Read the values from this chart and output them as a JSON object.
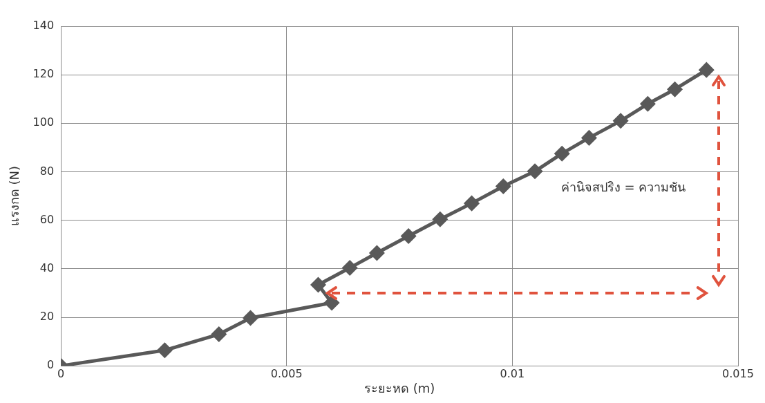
{
  "chart_data": {
    "type": "line",
    "xlabel": "ระยะหด (m)",
    "ylabel": "แรงกด (N)",
    "x": [
      0,
      0.0023,
      0.0035,
      0.0042,
      0.006,
      0.0057,
      0.0064,
      0.007,
      0.0077,
      0.0084,
      0.0091,
      0.0098,
      0.0105,
      0.0111,
      0.0117,
      0.0124,
      0.013,
      0.0136,
      0.0143
    ],
    "series": [
      {
        "color": "#595959",
        "values": [
          0,
          6.4,
          13,
          19.7,
          26,
          33.4,
          40.4,
          46.5,
          53.5,
          60.4,
          67,
          74,
          80.2,
          87.5,
          94,
          101,
          108,
          114,
          122
        ]
      }
    ],
    "xlim": [
      0,
      0.015
    ],
    "xticks": [
      0,
      0.005,
      0.01,
      0.015
    ],
    "ylim": [
      0,
      140
    ],
    "yticks": [
      0,
      20,
      40,
      60,
      80,
      100,
      120,
      140
    ],
    "grid": true,
    "marker": "diamond",
    "line_style": "solid",
    "annotations": [
      "ค่านิจสปริง = ความชัน"
    ]
  }
}
